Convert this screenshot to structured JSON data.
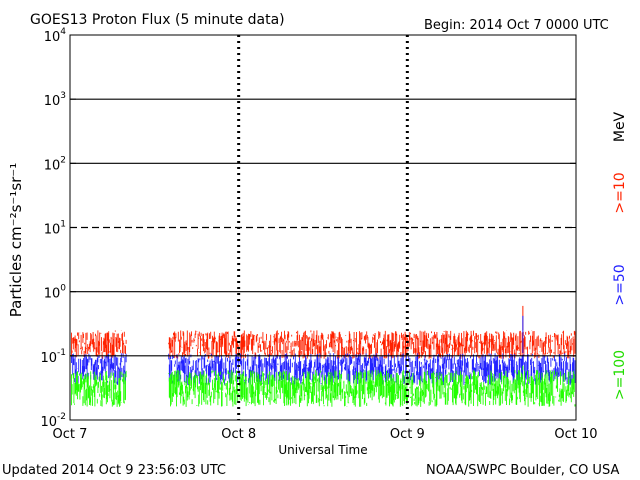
{
  "header": {
    "title": "GOES13 Proton Flux (5 minute data)",
    "begin": "Begin: 2014 Oct 7 0000 UTC"
  },
  "footer": {
    "updated": "Updated 2014 Oct  9 23:56:03 UTC",
    "credit": "NOAA/SWPC Boulder, CO USA"
  },
  "chart_data": {
    "type": "line",
    "title": "GOES13 Proton Flux (5 minute data)",
    "xlabel": "Universal Time",
    "ylabel": "Particles cm⁻²s⁻¹sr⁻¹",
    "y_scale": "log",
    "ylim": [
      0.01,
      10000
    ],
    "xlim": [
      "2014-10-07",
      "2014-10-10"
    ],
    "x_ticks": [
      "Oct 7",
      "Oct 8",
      "Oct 9",
      "Oct 10"
    ],
    "y_ticks": [
      {
        "base": "10",
        "exp": "-2"
      },
      {
        "base": "10",
        "exp": "-1"
      },
      {
        "base": "10",
        "exp": "0"
      },
      {
        "base": "10",
        "exp": "1"
      },
      {
        "base": "10",
        "exp": "2"
      },
      {
        "base": "10",
        "exp": "3"
      },
      {
        "base": "10",
        "exp": "4"
      }
    ],
    "reference_lines": [
      0.1,
      1,
      10,
      100,
      1000
    ],
    "data_gap": [
      "2014-10-07 08:00",
      "2014-10-07 14:00"
    ],
    "series": [
      {
        "name": ">=10 MeV",
        "legend_label": ">=10",
        "unit_label": "MeV",
        "color": "#ff2200",
        "typical_range": [
          0.09,
          0.25
        ],
        "peak": 0.6
      },
      {
        "name": ">=50 MeV",
        "legend_label": ">=50",
        "color": "#2222ff",
        "typical_range": [
          0.035,
          0.11
        ],
        "peak": 0.42
      },
      {
        "name": ">=100 MeV",
        "legend_label": ">=100",
        "color": "#22ff00",
        "typical_range": [
          0.016,
          0.06
        ],
        "peak": 0.07
      }
    ]
  }
}
